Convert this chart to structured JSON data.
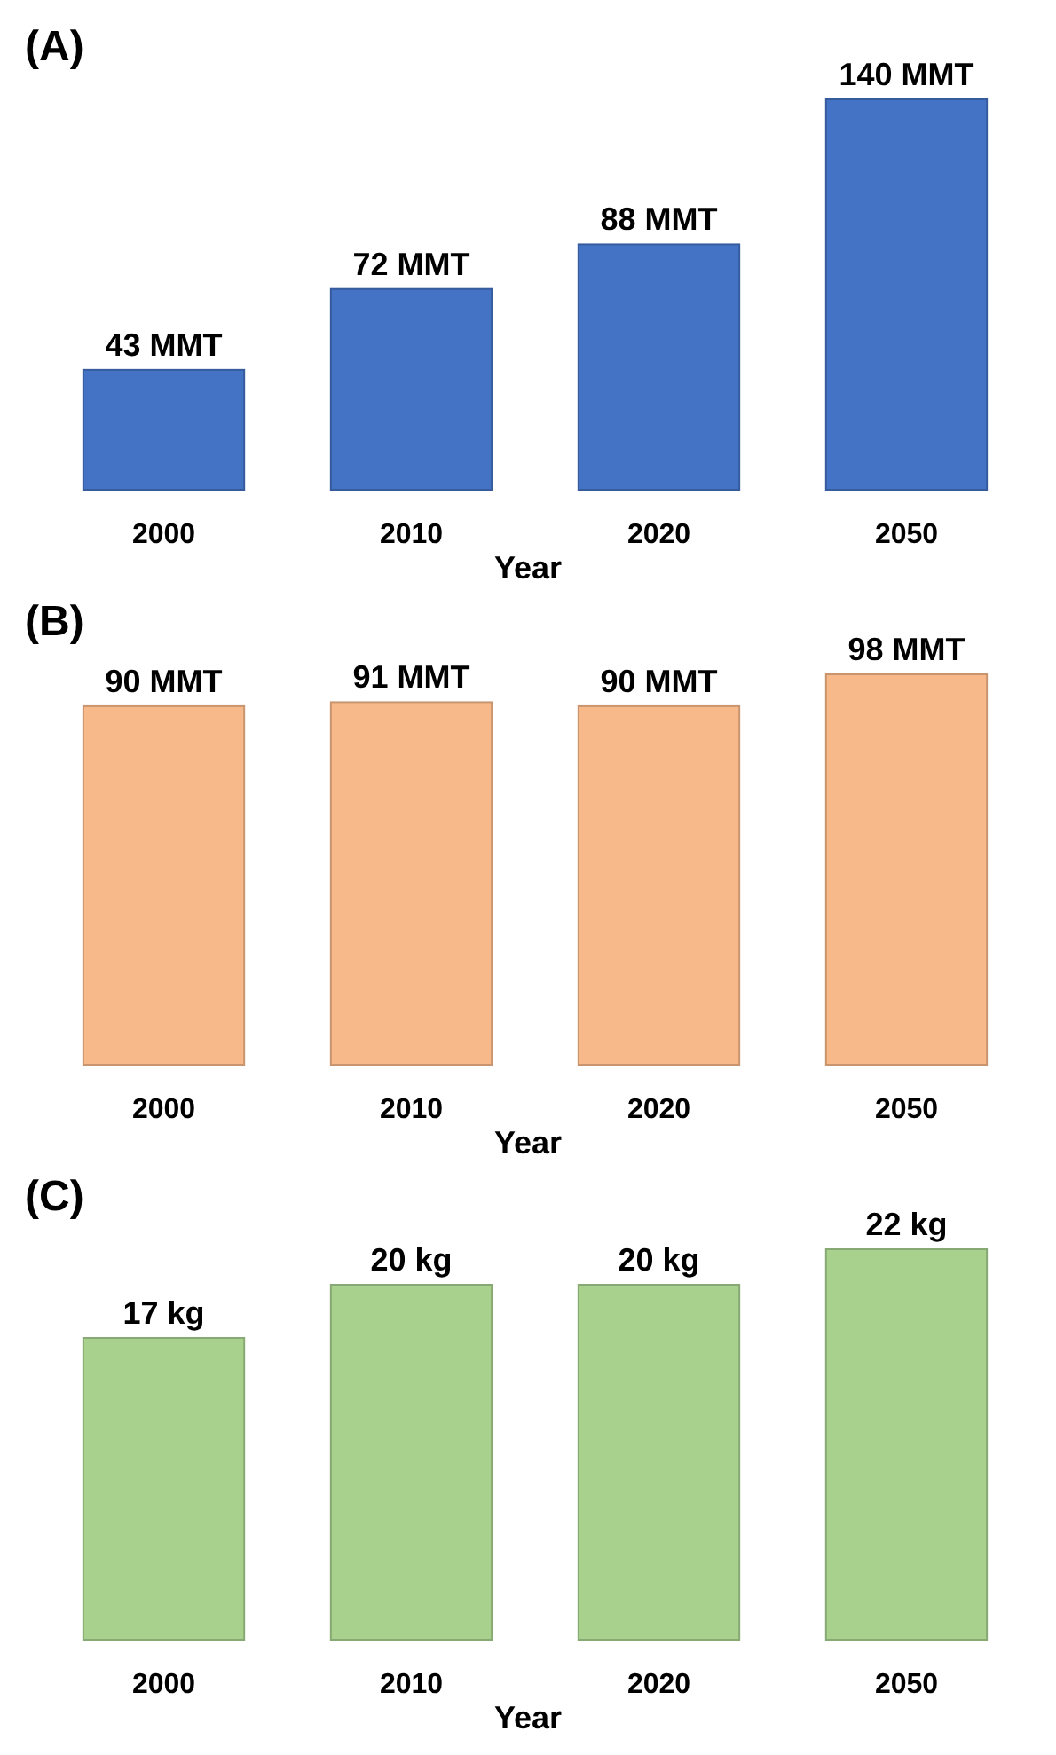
{
  "chart_data": [
    {
      "type": "bar",
      "title": "(A)",
      "xlabel": "Year",
      "categories": [
        "2000",
        "2010",
        "2020",
        "2050"
      ],
      "values": [
        43,
        72,
        88,
        140
      ],
      "value_labels": [
        "43 MMT",
        "72 MMT",
        "88 MMT",
        "140 MMT"
      ],
      "color": "#4472c4"
    },
    {
      "type": "bar",
      "title": "(B)",
      "xlabel": "Year",
      "categories": [
        "2000",
        "2010",
        "2020",
        "2050"
      ],
      "values": [
        90,
        91,
        90,
        98
      ],
      "value_labels": [
        "90 MMT",
        "91 MMT",
        "90 MMT",
        "98 MMT"
      ],
      "color": "#f8b98a"
    },
    {
      "type": "bar",
      "title": "(C)",
      "xlabel": "Year",
      "categories": [
        "2000",
        "2010",
        "2020",
        "2050"
      ],
      "values": [
        17,
        20,
        20,
        22
      ],
      "value_labels": [
        "17 kg",
        "20 kg",
        "20 kg",
        "22 kg"
      ],
      "color": "#a9d18e"
    }
  ]
}
